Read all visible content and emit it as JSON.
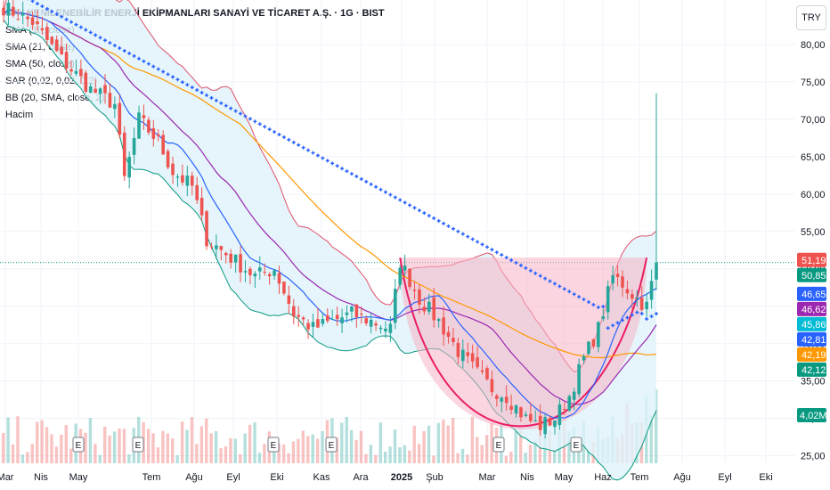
{
  "header": {
    "title": "SAY YENİLENEBİLİR ENERJİ EKİPMANLARI SANAYİ VE TİCARET A.Ş. · 1G · BIST",
    "indicators": [
      "SMA (10, close)",
      "SMA (21, close)",
      "SMA (50, close)",
      "SAR (0,02, 0,02, 0,2)",
      "BB (20, SMA, close, 2)",
      "Hacim"
    ],
    "currency_button": "TRY"
  },
  "colors": {
    "up": "#26a69a",
    "down": "#ef5350",
    "sma10": "#2962ff",
    "sma21": "#9c27b0",
    "sma50": "#ff9800",
    "sar": "#2962ff",
    "bb_upper": "#e0526b",
    "bb_lower": "#089981",
    "bb_fill": "#dff3fa",
    "pattern_fill": "#f7b3c5",
    "pattern_line": "#e91e63"
  },
  "chart_data": {
    "type": "candlestick",
    "y_axis": {
      "ticks": [
        {
          "value": 25,
          "label": "25,00"
        },
        {
          "value": 30,
          "label": "30,00"
        },
        {
          "value": 35,
          "label": "35,00"
        },
        {
          "value": 40,
          "label": "40,00"
        },
        {
          "value": 45,
          "label": "45,00"
        },
        {
          "value": 50,
          "label": "50,00"
        },
        {
          "value": 55,
          "label": "55,00"
        },
        {
          "value": 60,
          "label": "60,00"
        },
        {
          "value": 65,
          "label": "65,00"
        },
        {
          "value": 70,
          "label": "70,00"
        },
        {
          "value": 75,
          "label": "75,00"
        },
        {
          "value": 80,
          "label": "80,00"
        }
      ],
      "range": [
        24,
        85
      ]
    },
    "x_axis": {
      "labels": [
        {
          "label": "Mar",
          "bold": false
        },
        {
          "label": "Nis",
          "bold": false
        },
        {
          "label": "May",
          "bold": false
        },
        {
          "label": "Tem",
          "bold": false
        },
        {
          "label": "Ağu",
          "bold": false
        },
        {
          "label": "Eyl",
          "bold": false
        },
        {
          "label": "Eki",
          "bold": false
        },
        {
          "label": "Kas",
          "bold": false
        },
        {
          "label": "Ara",
          "bold": false
        },
        {
          "label": "2025",
          "bold": true
        },
        {
          "label": "Şub",
          "bold": false
        },
        {
          "label": "Mar",
          "bold": false
        },
        {
          "label": "Nis",
          "bold": false
        },
        {
          "label": "May",
          "bold": false
        },
        {
          "label": "Haz",
          "bold": false
        },
        {
          "label": "Tem",
          "bold": false
        },
        {
          "label": "Ağu",
          "bold": false
        },
        {
          "label": "Eyl",
          "bold": false
        },
        {
          "label": "Eki",
          "bold": false
        }
      ]
    },
    "price_path": [
      [
        0,
        85
      ],
      [
        6,
        83
      ],
      [
        12,
        78
      ],
      [
        18,
        74
      ],
      [
        23,
        72
      ],
      [
        25,
        62
      ],
      [
        28,
        70
      ],
      [
        32,
        67
      ],
      [
        35,
        63
      ],
      [
        39,
        61
      ],
      [
        42,
        54
      ],
      [
        46,
        52
      ],
      [
        52,
        49
      ],
      [
        56,
        50
      ],
      [
        60,
        44
      ],
      [
        64,
        42
      ],
      [
        68,
        43
      ],
      [
        72,
        44
      ],
      [
        76,
        43
      ],
      [
        80,
        42
      ],
      [
        82,
        51
      ],
      [
        86,
        46
      ],
      [
        90,
        43
      ],
      [
        94,
        39
      ],
      [
        98,
        36
      ],
      [
        101,
        34
      ],
      [
        104,
        33
      ],
      [
        108,
        30
      ],
      [
        111,
        29
      ],
      [
        114,
        30
      ],
      [
        117,
        33
      ],
      [
        120,
        38
      ],
      [
        123,
        42
      ],
      [
        126,
        49
      ],
      [
        128,
        48
      ],
      [
        131,
        46
      ],
      [
        133,
        45
      ],
      [
        135,
        50.85
      ]
    ],
    "last_close": 50.85,
    "spike_high": 73.5,
    "cup_pattern": {
      "rim_left": 51.5,
      "rim_right": 51.5,
      "bottom": 28
    },
    "price_tags": [
      {
        "name": "high",
        "value": 51.19,
        "label": "51,19",
        "color": "#ef5350"
      },
      {
        "name": "last",
        "value": 50.85,
        "label": "50,85",
        "color": "#089981"
      },
      {
        "name": "sar",
        "value": 46.65,
        "label": "46,65",
        "color": "#2962ff"
      },
      {
        "name": "sma21",
        "value": 46.62,
        "label": "46,62",
        "color": "#9c27b0"
      },
      {
        "name": "bb-mid",
        "value": 45.86,
        "label": "45,86",
        "color": "#00bcd4"
      },
      {
        "name": "sma10",
        "value": 42.81,
        "label": "42,81",
        "color": "#2962ff"
      },
      {
        "name": "sma50",
        "value": 42.19,
        "label": "42,19",
        "color": "#ff9800"
      },
      {
        "name": "bb-lower",
        "value": 42.12,
        "label": "42,12",
        "color": "#089981"
      }
    ],
    "volume_tag": {
      "label": "4,02M",
      "color": "#089981"
    },
    "earnings_markers": {
      "label": "E",
      "count": 6
    }
  }
}
